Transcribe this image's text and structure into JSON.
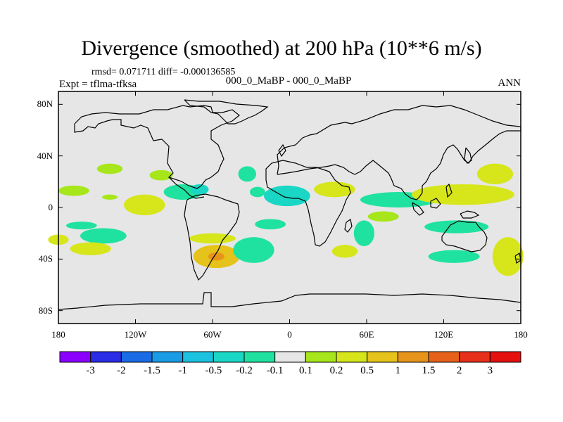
{
  "title": "Divergence (smoothed) at 200 hPa (10**6 m/s)",
  "stats": "rmsd= 0.071711 diff= -0.000136585",
  "case_label": "000_0_MaBP - 000_0_MaBP",
  "expt_label": "Expt = tflma-tfksa",
  "season": "ANN",
  "map": {
    "lat_range": [
      -90,
      90
    ],
    "lon_range": [
      -180,
      180
    ],
    "lat_ticks": [
      "80N",
      "40N",
      "0",
      "40S",
      "80S"
    ],
    "lon_ticks": [
      "180",
      "120W",
      "60W",
      "0",
      "60E",
      "120E",
      "180"
    ],
    "background_color": "#e6e6e6"
  },
  "colorbar": {
    "labels": [
      "-3",
      "-2",
      "-1.5",
      "-1",
      "-0.5",
      "-0.2",
      "-0.1",
      "0.1",
      "0.2",
      "0.5",
      "1",
      "1.5",
      "2",
      "3"
    ],
    "colors": [
      "#8c00ff",
      "#2a2ce6",
      "#1a6be6",
      "#1a9be6",
      "#1ac2e0",
      "#1ad6c4",
      "#20e2a0",
      "#e6e6e6",
      "#a6e61a",
      "#d6e61a",
      "#e6c31a",
      "#e6941a",
      "#e6621a",
      "#e6301a",
      "#e60f0f"
    ]
  },
  "chart_data": {
    "type": "filled-contour-map",
    "variable": "Divergence (smoothed) at 200 hPa",
    "units": "10**6 m/s",
    "features": [
      {
        "lon": -140,
        "lat": 30,
        "rx": 10,
        "ry": 4,
        "level": "0.1"
      },
      {
        "lon": -100,
        "lat": 25,
        "rx": 9,
        "ry": 4,
        "level": "0.1"
      },
      {
        "lon": -168,
        "lat": 13,
        "rx": 12,
        "ry": 4,
        "level": "0.1"
      },
      {
        "lon": -140,
        "lat": 8,
        "rx": 6,
        "ry": 2,
        "level": "0.1"
      },
      {
        "lon": -113,
        "lat": 2,
        "rx": 16,
        "ry": 8,
        "level": "0.2"
      },
      {
        "lon": -83,
        "lat": 12,
        "rx": 15,
        "ry": 6,
        "level": "-0.1"
      },
      {
        "lon": -70,
        "lat": 14,
        "rx": 7,
        "ry": 4,
        "level": "-0.2"
      },
      {
        "lon": -33,
        "lat": 26,
        "rx": 7,
        "ry": 6,
        "level": "-0.1"
      },
      {
        "lon": -25,
        "lat": 12,
        "rx": 6,
        "ry": 4,
        "level": "-0.1"
      },
      {
        "lon": -2,
        "lat": 9,
        "rx": 18,
        "ry": 8,
        "level": "-0.2"
      },
      {
        "lon": 35,
        "lat": 14,
        "rx": 16,
        "ry": 6,
        "level": "0.2"
      },
      {
        "lon": 85,
        "lat": 6,
        "rx": 30,
        "ry": 6,
        "level": "-0.1"
      },
      {
        "lon": 135,
        "lat": 10,
        "rx": 40,
        "ry": 8,
        "level": "0.2"
      },
      {
        "lon": 160,
        "lat": 26,
        "rx": 14,
        "ry": 8,
        "level": "0.2"
      },
      {
        "lon": -162,
        "lat": -14,
        "rx": 12,
        "ry": 3,
        "level": "-0.1"
      },
      {
        "lon": -145,
        "lat": -22,
        "rx": 18,
        "ry": 6,
        "level": "-0.1"
      },
      {
        "lon": -180,
        "lat": -25,
        "rx": 8,
        "ry": 4,
        "level": "0.2"
      },
      {
        "lon": -155,
        "lat": -32,
        "rx": 16,
        "ry": 5,
        "level": "0.2"
      },
      {
        "lon": -60,
        "lat": -24,
        "rx": 18,
        "ry": 4,
        "level": "0.2"
      },
      {
        "lon": -57,
        "lat": -38,
        "rx": 18,
        "ry": 9,
        "level": "0.5"
      },
      {
        "lon": -28,
        "lat": -33,
        "rx": 16,
        "ry": 10,
        "level": "-0.1"
      },
      {
        "lon": -15,
        "lat": -13,
        "rx": 12,
        "ry": 4,
        "level": "-0.1"
      },
      {
        "lon": 43,
        "lat": -34,
        "rx": 10,
        "ry": 5,
        "level": "0.2"
      },
      {
        "lon": 58,
        "lat": -20,
        "rx": 8,
        "ry": 10,
        "level": "-0.1"
      },
      {
        "lon": 73,
        "lat": -7,
        "rx": 12,
        "ry": 4,
        "level": "0.1"
      },
      {
        "lon": 130,
        "lat": -15,
        "rx": 25,
        "ry": 5,
        "level": "-0.1"
      },
      {
        "lon": 128,
        "lat": -38,
        "rx": 20,
        "ry": 5,
        "level": "-0.1"
      },
      {
        "lon": 170,
        "lat": -38,
        "rx": 12,
        "ry": 15,
        "level": "0.2"
      }
    ]
  }
}
